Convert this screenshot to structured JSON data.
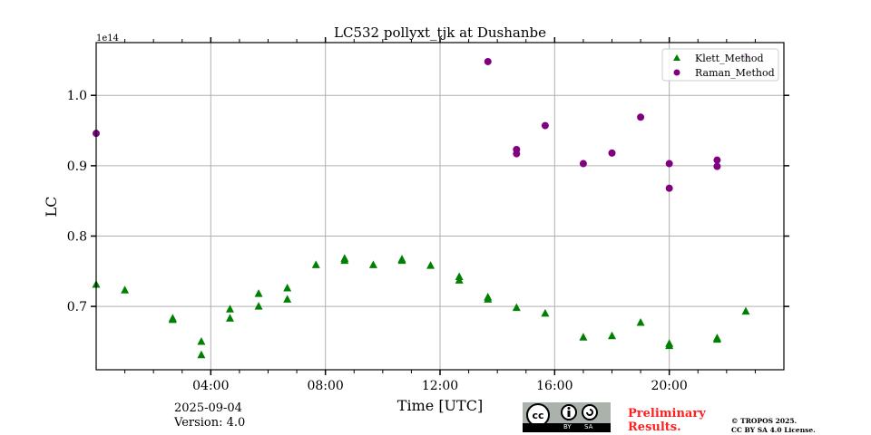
{
  "chart_data": {
    "type": "scatter",
    "title": "LC532 pollyxt_tjk at Dushanbe",
    "xlabel": "Time [UTC]",
    "ylabel": "LC",
    "y_scale_label": "1e14",
    "xlim": [
      0,
      24
    ],
    "ylim": [
      0.61,
      1.075
    ],
    "x_unit": "hours UTC",
    "xticks": [
      {
        "v": 4,
        "label": "04:00"
      },
      {
        "v": 8,
        "label": "08:00"
      },
      {
        "v": 12,
        "label": "12:00"
      },
      {
        "v": 16,
        "label": "16:00"
      },
      {
        "v": 20,
        "label": "20:00"
      }
    ],
    "yticks": [
      {
        "v": 0.7,
        "label": "0.7"
      },
      {
        "v": 0.8,
        "label": "0.8"
      },
      {
        "v": 0.9,
        "label": "0.9"
      },
      {
        "v": 1.0,
        "label": "1.0"
      }
    ],
    "grid": true,
    "legend_position": "top-right",
    "series": [
      {
        "name": "Klett_Method",
        "marker": "triangle",
        "color": "#008000",
        "x": [
          0,
          1,
          2.67,
          2.67,
          3.67,
          3.67,
          4.67,
          4.67,
          5.67,
          5.67,
          6.67,
          6.67,
          7.67,
          8.67,
          8.67,
          9.67,
          10.67,
          10.67,
          11.67,
          12.67,
          12.67,
          13.67,
          13.67,
          14.67,
          15.67,
          17,
          18,
          19,
          20,
          20,
          21.67,
          21.67,
          22.67
        ],
        "y": [
          0.731,
          0.723,
          0.683,
          0.681,
          0.65,
          0.631,
          0.696,
          0.683,
          0.718,
          0.7,
          0.726,
          0.71,
          0.759,
          0.768,
          0.765,
          0.759,
          0.767,
          0.765,
          0.758,
          0.742,
          0.737,
          0.713,
          0.71,
          0.698,
          0.69,
          0.656,
          0.658,
          0.677,
          0.647,
          0.644,
          0.655,
          0.653,
          0.693
        ]
      },
      {
        "name": "Raman_Method",
        "marker": "circle",
        "color": "#800080",
        "x": [
          0,
          13.67,
          14.67,
          14.67,
          15.67,
          17,
          18,
          19,
          20,
          20,
          21.67,
          21.67,
          22.67
        ],
        "y": [
          0.946,
          1.048,
          0.923,
          0.917,
          0.957,
          0.903,
          0.918,
          0.969,
          0.903,
          0.868,
          0.908,
          0.899,
          1.055
        ]
      }
    ]
  },
  "footer": {
    "date": "2025-09-04",
    "version": "Version: 4.0",
    "preliminary": [
      "Preliminary",
      "Results."
    ],
    "copyright": [
      "© TROPOS 2025.",
      "CC BY SA 4.0 License."
    ],
    "cc_badge": {
      "by": "BY",
      "sa": "SA",
      "cc": "cc"
    }
  }
}
